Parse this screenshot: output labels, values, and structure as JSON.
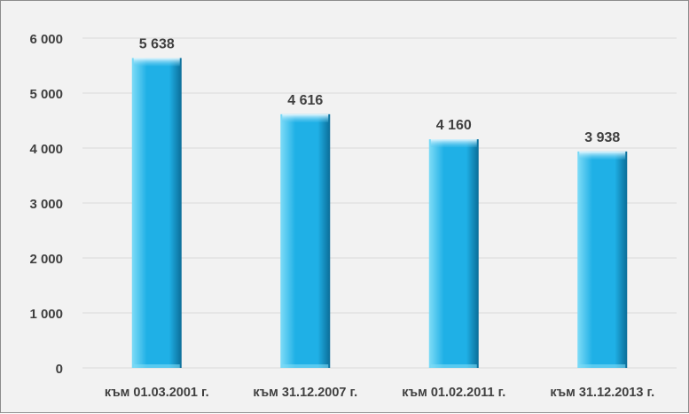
{
  "chart_data": {
    "type": "bar",
    "categories": [
      "към 01.03.2001 г.",
      "към 31.12.2007 г.",
      "към 01.02.2011 г.",
      "към 31.12.2013 г."
    ],
    "values": [
      5638,
      4616,
      4160,
      3938
    ],
    "data_labels": [
      "5 638",
      "4 616",
      "4 160",
      "3 938"
    ],
    "title": "",
    "xlabel": "",
    "ylabel": "",
    "ylim": [
      0,
      6000
    ],
    "yticks": [
      {
        "value": 0,
        "label": "0"
      },
      {
        "value": 1000,
        "label": "1 000"
      },
      {
        "value": 2000,
        "label": "2 000"
      },
      {
        "value": 3000,
        "label": "3 000"
      },
      {
        "value": 4000,
        "label": "4 000"
      },
      {
        "value": 5000,
        "label": "5 000"
      },
      {
        "value": 6000,
        "label": "6 000"
      }
    ],
    "grid": true,
    "legend": "none",
    "colors": {
      "bar_light": "#7fdcf7",
      "bar_main": "#1fb0e6",
      "bar_dark": "#0b6d98",
      "grid": "#d9d9d9",
      "background": "#f2f2f2",
      "text": "#404040"
    }
  }
}
